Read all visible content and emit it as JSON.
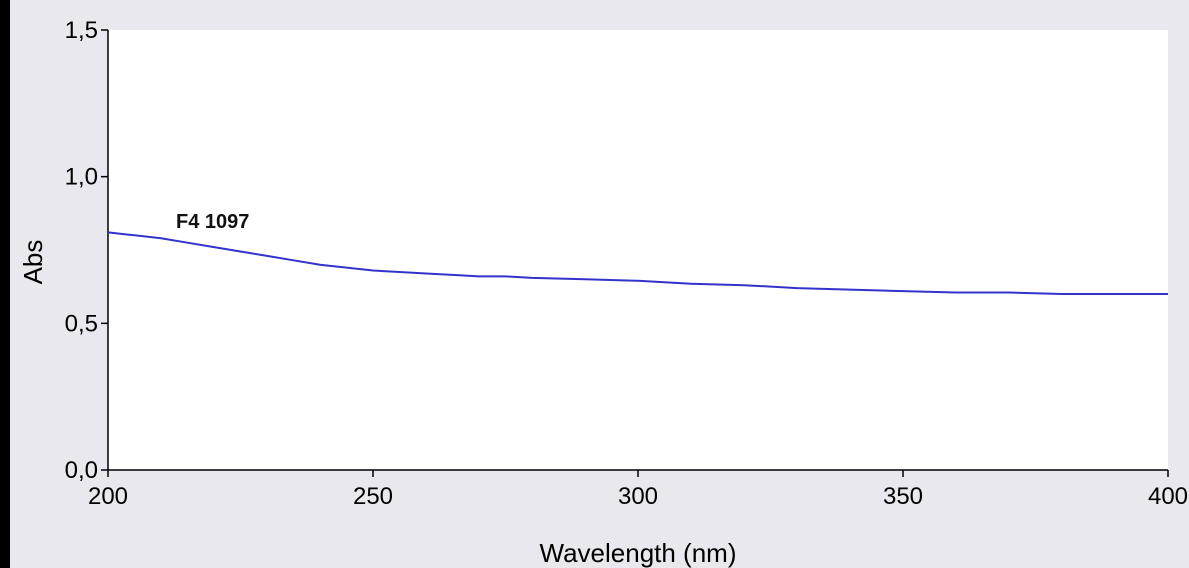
{
  "chart_data": {
    "type": "line",
    "xlabel": "Wavelength (nm)",
    "ylabel": "Abs",
    "xlim": [
      200,
      400
    ],
    "ylim": [
      0.0,
      1.5
    ],
    "x_ticks": [
      200,
      250,
      300,
      350,
      400
    ],
    "x_tick_labels": [
      "200",
      "250",
      "300",
      "350",
      "400"
    ],
    "y_ticks": [
      0.0,
      0.5,
      1.0,
      1.5
    ],
    "y_tick_labels": [
      "0,0",
      "0,5",
      "1,0",
      "1,5"
    ],
    "grid": false,
    "annotation": "F4 1097",
    "colors": {
      "series": "#3333cc",
      "background": "#ffffff",
      "outer_background": "#e8e8ee",
      "axis": "#000000"
    },
    "series": [
      {
        "x": [
          200,
          205,
          210,
          215,
          220,
          225,
          230,
          235,
          240,
          245,
          250,
          255,
          260,
          265,
          270,
          275,
          280,
          290,
          300,
          310,
          320,
          330,
          340,
          350,
          360,
          370,
          380,
          390,
          400
        ],
        "y": [
          0.81,
          0.8,
          0.79,
          0.775,
          0.76,
          0.745,
          0.73,
          0.715,
          0.7,
          0.69,
          0.68,
          0.675,
          0.67,
          0.665,
          0.66,
          0.66,
          0.655,
          0.65,
          0.645,
          0.635,
          0.63,
          0.62,
          0.615,
          0.61,
          0.605,
          0.605,
          0.6,
          0.6,
          0.6
        ]
      }
    ]
  }
}
